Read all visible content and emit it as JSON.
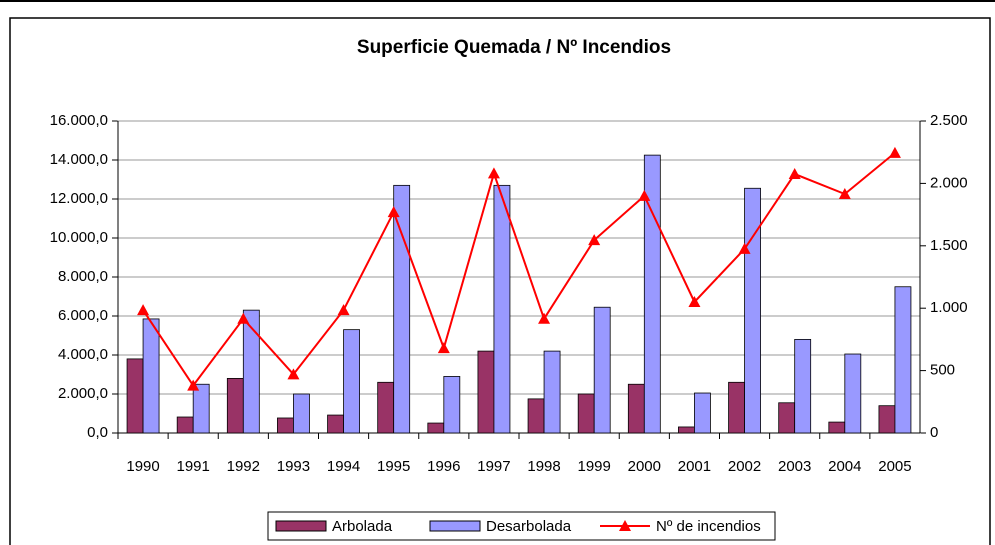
{
  "chart_data": {
    "type": "bar_line",
    "title": "Superficie Quemada / Nº Incendios",
    "categories": [
      "1990",
      "1991",
      "1992",
      "1993",
      "1994",
      "1995",
      "1996",
      "1997",
      "1998",
      "1999",
      "2000",
      "2001",
      "2002",
      "2003",
      "2004",
      "2005"
    ],
    "series": [
      {
        "name": "Arbolada",
        "color": "#993366",
        "type": "bar",
        "values": [
          3800,
          820,
          2800,
          770,
          920,
          2600,
          510,
          4200,
          1750,
          2000,
          2500,
          310,
          2600,
          1550,
          560,
          1400
        ]
      },
      {
        "name": "Desarbolada",
        "color": "#9999ff",
        "type": "bar",
        "values": [
          5850,
          2500,
          6300,
          2000,
          5300,
          12700,
          2900,
          12700,
          4200,
          6450,
          14250,
          2050,
          12550,
          4800,
          4050,
          7500
        ]
      },
      {
        "name": "Nº de incendios",
        "color": "#ff0000",
        "type": "line",
        "axis": "y2",
        "values": [
          985,
          380,
          915,
          470,
          985,
          1770,
          680,
          2080,
          915,
          1545,
          1900,
          1050,
          1475,
          2075,
          1915,
          2245
        ]
      }
    ],
    "ylim": [
      0,
      16000
    ],
    "yticks": [
      {
        "value": 0,
        "label": "0,0"
      },
      {
        "value": 2000,
        "label": "2.000,0"
      },
      {
        "value": 4000,
        "label": "4.000,0"
      },
      {
        "value": 6000,
        "label": "6.000,0"
      },
      {
        "value": 8000,
        "label": "8.000,0"
      },
      {
        "value": 10000,
        "label": "10.000,0"
      },
      {
        "value": 12000,
        "label": "12.000,0"
      },
      {
        "value": 14000,
        "label": "14.000,0"
      },
      {
        "value": 16000,
        "label": "16.000,0"
      }
    ],
    "y2lim": [
      0,
      2500
    ],
    "y2ticks": [
      0,
      500,
      {
        "value": 1000,
        "label": "1.000"
      },
      {
        "value": 1500,
        "label": "1.500"
      },
      {
        "value": 2000,
        "label": "2.000"
      },
      {
        "value": 2500,
        "label": "2.500"
      }
    ],
    "grid": true,
    "legend": "bottom"
  }
}
